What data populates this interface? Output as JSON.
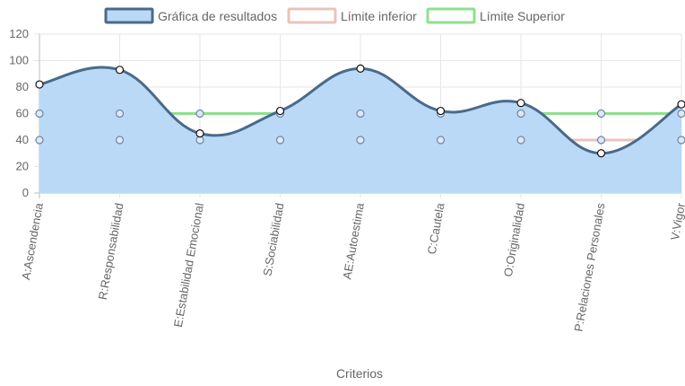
{
  "chart_data": {
    "type": "line",
    "categories": [
      "A:Ascendencia",
      "R:Responsabilidad",
      "E:Estabilidad Emocional",
      "S:Sociabilidad",
      "AE:Autoestima",
      "C:Cautela",
      "O:Originalidad",
      "P:Relaciones Personales",
      "V:Vigor"
    ],
    "series": [
      {
        "name": "Gráfica de resultados",
        "values": [
          82,
          93,
          45,
          62,
          94,
          62,
          68,
          30,
          67
        ],
        "color": "#4a6a8a",
        "fill": "#b9d9f7",
        "filled": true,
        "curved": true
      },
      {
        "name": "Límite inferior",
        "values": [
          40,
          40,
          40,
          40,
          40,
          40,
          40,
          40,
          40
        ],
        "color": "#e8c4bb",
        "filled": false,
        "curved": false
      },
      {
        "name": "Límite Superior",
        "values": [
          60,
          60,
          60,
          60,
          60,
          60,
          60,
          60,
          60
        ],
        "color": "#8de08d",
        "filled": false,
        "curved": false
      }
    ],
    "y_ticks": [
      "0",
      "20",
      "40",
      "60",
      "80",
      "100",
      "120"
    ],
    "ylim": [
      0,
      120
    ],
    "xlabel": "Criterios",
    "ylabel": "",
    "grid": true,
    "legend": "top-center"
  }
}
